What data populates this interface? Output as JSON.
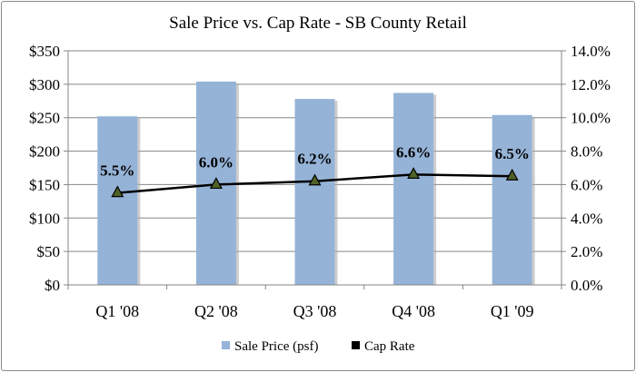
{
  "chart_data": {
    "type": "bar+line",
    "title": "Sale Price vs. Cap Rate - SB County Retail",
    "categories": [
      "Q1 '08",
      "Q2 '08",
      "Q3 '08",
      "Q4 '08",
      "Q1 '09"
    ],
    "series": [
      {
        "name": "Sale Price (psf)",
        "type": "bar",
        "axis": "left",
        "values": [
          252,
          304,
          278,
          287,
          254
        ],
        "color": "#95b3d7"
      },
      {
        "name": "Cap Rate",
        "type": "line",
        "axis": "right",
        "values": [
          5.5,
          6.0,
          6.2,
          6.6,
          6.5
        ],
        "labels": [
          "5.5%",
          "6.0%",
          "6.2%",
          "6.6%",
          "6.5%"
        ],
        "color": "#000000",
        "marker_color": "#4f6228"
      }
    ],
    "y_left": {
      "min": 0,
      "max": 350,
      "step": 50,
      "tick_labels": [
        "$0",
        "$50",
        "$100",
        "$150",
        "$200",
        "$250",
        "$300",
        "$350"
      ]
    },
    "y_right": {
      "min": 0,
      "max": 14,
      "step": 2,
      "tick_labels": [
        "0.0%",
        "2.0%",
        "4.0%",
        "6.0%",
        "8.0%",
        "10.0%",
        "12.0%",
        "14.0%"
      ]
    },
    "grid": true,
    "legend": {
      "position": "bottom",
      "entries": [
        "Sale Price (psf)",
        "Cap Rate"
      ]
    }
  }
}
